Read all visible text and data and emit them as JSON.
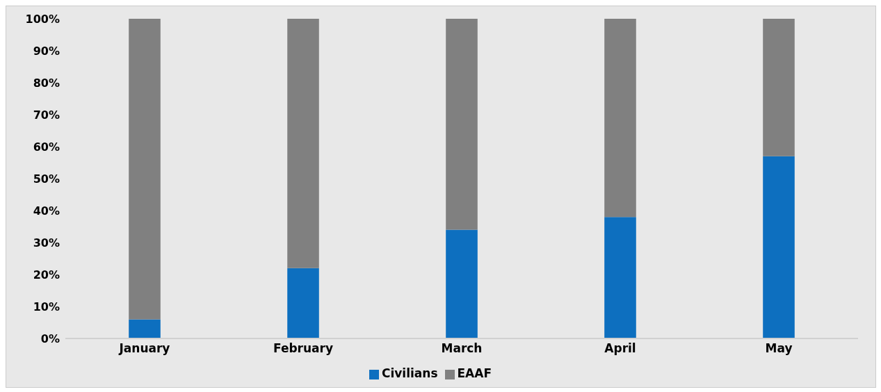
{
  "chart_data": {
    "type": "bar",
    "stacked": true,
    "categories": [
      "January",
      "February",
      "March",
      "April",
      "May"
    ],
    "series": [
      {
        "name": "Civilians",
        "color": "#0d6fbf",
        "values": [
          6,
          22,
          34,
          38,
          57
        ]
      },
      {
        "name": "EAAF",
        "color": "#808080",
        "values": [
          94,
          78,
          66,
          62,
          43
        ]
      }
    ],
    "ylim": [
      0,
      100
    ],
    "yticks": [
      {
        "value": 0,
        "label": "0%"
      },
      {
        "value": 10,
        "label": "10%"
      },
      {
        "value": 20,
        "label": "20%"
      },
      {
        "value": 30,
        "label": "30%"
      },
      {
        "value": 40,
        "label": "40%"
      },
      {
        "value": 50,
        "label": "50%"
      },
      {
        "value": 60,
        "label": "60%"
      },
      {
        "value": 70,
        "label": "70%"
      },
      {
        "value": 80,
        "label": "80%"
      },
      {
        "value": 90,
        "label": "90%"
      },
      {
        "value": 100,
        "label": "100%"
      }
    ],
    "grid": false,
    "legend": "bottom"
  }
}
